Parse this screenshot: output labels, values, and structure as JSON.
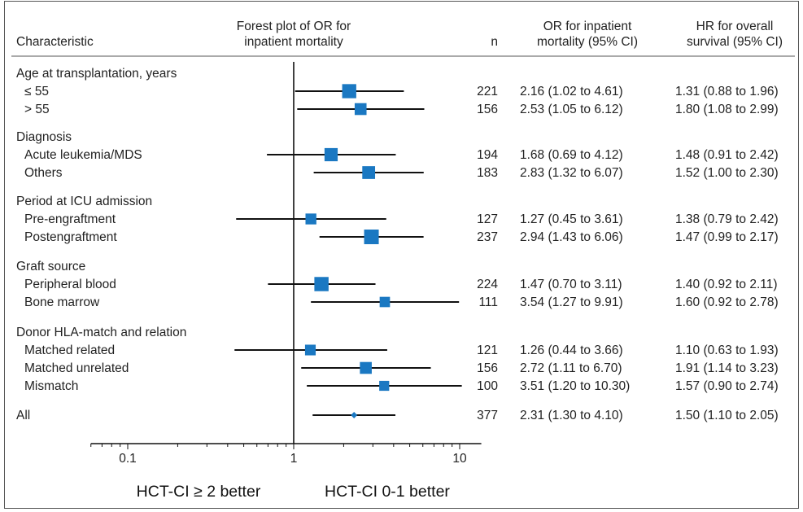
{
  "chart_data": {
    "type": "forest",
    "title": "Forest plot of OR for inpatient mortality",
    "scale": "log",
    "xlim": [
      0.06,
      13.5
    ],
    "reference_line": 1,
    "xticks": [
      {
        "value": 0.1,
        "label": "0.1"
      },
      {
        "value": 1,
        "label": "1"
      },
      {
        "value": 10,
        "label": "10"
      }
    ],
    "headers": {
      "characteristic": "Characteristic",
      "plot_line1": "Forest plot of OR for",
      "plot_line2": "inpatient mortality",
      "n": "n",
      "or_line1": "OR for inpatient",
      "or_line2": "mortality (95% CI)",
      "hr_line1": "HR for overall",
      "hr_line2": "survival (95% CI)"
    },
    "groups": [
      {
        "label": "Age at transplantation, years",
        "rows": [
          {
            "label": "≤ 55",
            "n": "221",
            "or": 2.16,
            "lo": 1.02,
            "hi": 4.61,
            "or_text": "2.16 (1.02 to 4.61)",
            "hr_text": "1.31 (0.88 to 1.96)",
            "weight": 221
          },
          {
            "label": "> 55",
            "n": "156",
            "or": 2.53,
            "lo": 1.05,
            "hi": 6.12,
            "or_text": "2.53 (1.05 to 6.12)",
            "hr_text": "1.80 (1.08 to 2.99)",
            "weight": 156
          }
        ]
      },
      {
        "label": "Diagnosis",
        "rows": [
          {
            "label": "Acute leukemia/MDS",
            "n": "194",
            "or": 1.68,
            "lo": 0.69,
            "hi": 4.12,
            "or_text": "1.68 (0.69 to 4.12)",
            "hr_text": "1.48 (0.91 to 2.42)",
            "weight": 194
          },
          {
            "label": "Others",
            "n": "183",
            "or": 2.83,
            "lo": 1.32,
            "hi": 6.07,
            "or_text": "2.83 (1.32 to 6.07)",
            "hr_text": "1.52 (1.00 to 2.30)",
            "weight": 183
          }
        ]
      },
      {
        "label": "Period at ICU admission",
        "rows": [
          {
            "label": "Pre-engraftment",
            "n": "127",
            "or": 1.27,
            "lo": 0.45,
            "hi": 3.61,
            "or_text": "1.27 (0.45 to 3.61)",
            "hr_text": "1.38 (0.79 to 2.42)",
            "weight": 127
          },
          {
            "label": "Postengraftment",
            "n": "237",
            "or": 2.94,
            "lo": 1.43,
            "hi": 6.06,
            "or_text": "2.94 (1.43 to 6.06)",
            "hr_text": "1.47 (0.99 to 2.17)",
            "weight": 237
          }
        ]
      },
      {
        "label": "Graft source",
        "rows": [
          {
            "label": "Peripheral blood",
            "n": "224",
            "or": 1.47,
            "lo": 0.7,
            "hi": 3.11,
            "or_text": "1.47 (0.70 to 3.11)",
            "hr_text": "1.40 (0.92 to 2.11)",
            "weight": 224
          },
          {
            "label": "Bone marrow",
            "n": "111",
            "or": 3.54,
            "lo": 1.27,
            "hi": 9.91,
            "or_text": "3.54 (1.27 to 9.91)",
            "hr_text": "1.60 (0.92 to 2.78)",
            "weight": 111
          }
        ]
      },
      {
        "label": "Donor HLA-match and relation",
        "rows": [
          {
            "label": "Matched related",
            "n": "121",
            "or": 1.26,
            "lo": 0.44,
            "hi": 3.66,
            "or_text": "1.26 (0.44 to 3.66)",
            "hr_text": "1.10 (0.63 to 1.93)",
            "weight": 121
          },
          {
            "label": "Matched unrelated",
            "n": "156",
            "or": 2.72,
            "lo": 1.11,
            "hi": 6.7,
            "or_text": "2.72 (1.11 to 6.70)",
            "hr_text": "1.91 (1.14 to 3.23)",
            "weight": 156
          },
          {
            "label": "Mismatch",
            "n": "100",
            "or": 3.51,
            "lo": 1.2,
            "hi": 10.3,
            "or_text": "3.51 (1.20 to 10.30)",
            "hr_text": "1.57 (0.90 to 2.74)",
            "weight": 100
          }
        ]
      }
    ],
    "overall": {
      "label": "All",
      "n": "377",
      "or": 2.31,
      "lo": 1.3,
      "hi": 4.1,
      "or_text": "2.31 (1.30 to 4.10)",
      "hr_text": "1.50 (1.10 to 2.05)"
    },
    "better_left": "HCT-CI ≥ 2 better",
    "better_right": "HCT-CI 0-1 better",
    "colors": {
      "marker": "#1a78c2",
      "line": "#111111",
      "text": "#222222",
      "rule": "#555555"
    }
  }
}
